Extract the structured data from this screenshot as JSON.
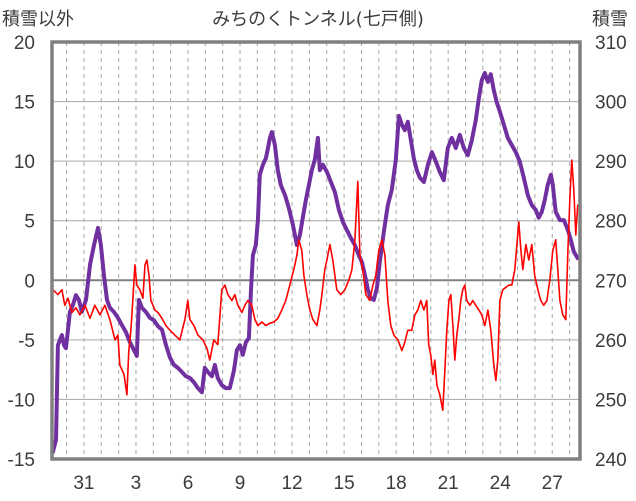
{
  "chart_data": {
    "type": "line",
    "title": "みちのくトンネル(七戸側)",
    "grid": true,
    "left_axis": {
      "label": "積雪以外",
      "ylim": [
        -15,
        20
      ],
      "ticks": [
        20,
        15,
        10,
        5,
        0,
        -5,
        -10,
        -15
      ]
    },
    "right_axis": {
      "label": "積雪",
      "ylim": [
        240,
        310
      ],
      "ticks": [
        310,
        300,
        290,
        280,
        270,
        260,
        250,
        240
      ]
    },
    "x_axis": {
      "xlim": [
        -1.84,
        28.6
      ],
      "tick_values": [
        0,
        3,
        6,
        9,
        12,
        15,
        18,
        21,
        24,
        27
      ],
      "tick_labels": [
        "31",
        "3",
        "6",
        "9",
        "12",
        "15",
        "18",
        "21",
        "24",
        "27"
      ]
    },
    "series": [
      {
        "axis": "left",
        "color": "#FF0000",
        "x": [
          -1.79,
          -1.5,
          -1.27,
          -1.1,
          -0.92,
          -0.69,
          -0.46,
          -0.23,
          0.06,
          0.35,
          0.63,
          0.92,
          1.21,
          1.5,
          1.79,
          1.96,
          2.07,
          2.31,
          2.48,
          2.59,
          2.71,
          2.82,
          2.94,
          3.05,
          3.23,
          3.4,
          3.52,
          3.63,
          3.75,
          3.86,
          3.98,
          4.09,
          4.27,
          4.5,
          4.73,
          4.96,
          5.24,
          5.53,
          5.82,
          5.99,
          6.11,
          6.34,
          6.57,
          6.86,
          7.09,
          7.26,
          7.49,
          7.72,
          7.95,
          8.13,
          8.3,
          8.53,
          8.7,
          8.88,
          9.11,
          9.28,
          9.45,
          9.68,
          9.86,
          10.03,
          10.26,
          10.49,
          10.72,
          10.95,
          11.18,
          11.41,
          11.64,
          11.87,
          12.1,
          12.28,
          12.39,
          12.56,
          12.68,
          12.85,
          13.03,
          13.2,
          13.43,
          13.6,
          13.72,
          13.89,
          14.01,
          14.18,
          14.35,
          14.58,
          14.81,
          15.04,
          15.27,
          15.45,
          15.62,
          15.79,
          15.91,
          16.08,
          16.25,
          16.48,
          16.66,
          16.83,
          17.0,
          17.18,
          17.35,
          17.52,
          17.69,
          17.87,
          18.1,
          18.33,
          18.5,
          18.67,
          18.9,
          19.08,
          19.25,
          19.42,
          19.6,
          19.77,
          19.88,
          20.0,
          20.12,
          20.23,
          20.35,
          20.52,
          20.69,
          20.81,
          20.92,
          21.04,
          21.15,
          21.27,
          21.38,
          21.5,
          21.61,
          21.73,
          21.84,
          21.96,
          22.07,
          22.25,
          22.42,
          22.59,
          22.77,
          22.94,
          23.11,
          23.29,
          23.46,
          23.63,
          23.75,
          23.86,
          23.98,
          24.15,
          24.32,
          24.5,
          24.67,
          24.84,
          24.96,
          25.07,
          25.19,
          25.3,
          25.48,
          25.65,
          25.82,
          25.99,
          26.17,
          26.34,
          26.51,
          26.69,
          26.86,
          27.03,
          27.2,
          27.32,
          27.44,
          27.61,
          27.78,
          27.9,
          28.01,
          28.13,
          28.24,
          28.36,
          28.47
        ],
        "y": [
          -0.8,
          -1.2,
          -0.8,
          -2.1,
          -1.5,
          -2.7,
          -2.3,
          -2.9,
          -2.1,
          -3.2,
          -2.1,
          -2.9,
          -2.1,
          -3.3,
          -5.0,
          -4.6,
          -7.1,
          -7.9,
          -9.6,
          -5.9,
          -4.2,
          -1.7,
          1.3,
          -0.4,
          -0.8,
          -1.5,
          1.3,
          1.7,
          0.4,
          -1.7,
          -2.1,
          -2.5,
          -2.7,
          -3.2,
          -3.8,
          -4.2,
          -4.6,
          -5.0,
          -3.3,
          -1.7,
          -3.3,
          -3.8,
          -4.6,
          -5.0,
          -5.7,
          -6.7,
          -5.0,
          -5.4,
          -0.8,
          -0.4,
          -1.2,
          -1.7,
          -1.2,
          -2.1,
          -2.7,
          -2.1,
          -1.7,
          -2.1,
          -3.3,
          -3.8,
          -3.5,
          -3.8,
          -3.6,
          -3.5,
          -3.2,
          -2.5,
          -1.7,
          -0.4,
          0.9,
          2.1,
          3.4,
          2.5,
          0.4,
          -1.2,
          -2.5,
          -3.3,
          -3.8,
          -2.5,
          -1.2,
          0.9,
          1.7,
          3.0,
          1.7,
          -0.8,
          -1.2,
          -0.8,
          0.0,
          0.9,
          3.4,
          8.3,
          2.1,
          0.9,
          -1.2,
          -1.7,
          -0.4,
          0.4,
          2.5,
          3.4,
          2.1,
          -1.7,
          -3.8,
          -4.6,
          -5.0,
          -5.9,
          -5.2,
          -4.2,
          -4.2,
          -2.9,
          -2.5,
          -1.7,
          -2.5,
          -1.7,
          -5.4,
          -6.3,
          -7.9,
          -6.7,
          -8.8,
          -9.6,
          -10.9,
          -7.5,
          -4.2,
          -1.7,
          -1.2,
          -3.8,
          -6.7,
          -4.6,
          -3.3,
          -1.7,
          -0.8,
          -0.4,
          -1.7,
          -2.1,
          -1.7,
          -2.1,
          -2.5,
          -2.9,
          -3.8,
          -2.5,
          -4.2,
          -7.1,
          -8.4,
          -6.7,
          -1.7,
          -0.8,
          -0.6,
          -0.4,
          -0.4,
          0.9,
          3.0,
          4.9,
          2.5,
          0.9,
          3.0,
          1.7,
          3.0,
          0.4,
          -0.8,
          -1.7,
          -2.1,
          -1.7,
          0.0,
          2.5,
          3.4,
          0.9,
          -1.7,
          -2.9,
          -3.3,
          2.5,
          6.7,
          10.1,
          7.6,
          3.8,
          6.3
        ]
      },
      {
        "axis": "right",
        "color": "#7030A0",
        "x": [
          -1.79,
          -1.61,
          -1.5,
          -1.38,
          -1.27,
          -1.15,
          -1.04,
          -0.92,
          -0.81,
          -0.63,
          -0.46,
          -0.29,
          -0.12,
          0.12,
          0.35,
          0.58,
          0.81,
          0.98,
          1.15,
          1.33,
          1.5,
          1.73,
          1.96,
          2.19,
          2.42,
          2.65,
          2.88,
          3.05,
          3.17,
          3.34,
          3.57,
          3.8,
          4.03,
          4.27,
          4.5,
          4.73,
          4.96,
          5.19,
          5.42,
          5.65,
          5.88,
          6.11,
          6.34,
          6.57,
          6.8,
          6.97,
          7.15,
          7.38,
          7.55,
          7.72,
          7.95,
          8.18,
          8.41,
          8.65,
          8.82,
          8.99,
          9.16,
          9.34,
          9.51,
          9.63,
          9.74,
          9.91,
          10.03,
          10.14,
          10.32,
          10.49,
          10.61,
          10.72,
          10.84,
          11.01,
          11.18,
          11.35,
          11.59,
          11.82,
          12.05,
          12.28,
          12.45,
          12.62,
          12.8,
          12.97,
          13.14,
          13.31,
          13.49,
          13.6,
          13.78,
          14.01,
          14.24,
          14.47,
          14.7,
          14.93,
          15.16,
          15.39,
          15.62,
          15.85,
          16.02,
          16.2,
          16.37,
          16.54,
          16.71,
          16.89,
          17.06,
          17.29,
          17.52,
          17.75,
          17.98,
          18.16,
          18.33,
          18.5,
          18.67,
          18.85,
          19.02,
          19.19,
          19.37,
          19.6,
          19.83,
          20.06,
          20.29,
          20.52,
          20.75,
          20.98,
          21.21,
          21.44,
          21.67,
          21.9,
          22.13,
          22.36,
          22.59,
          22.77,
          22.94,
          23.11,
          23.29,
          23.46,
          23.63,
          23.8,
          23.98,
          24.21,
          24.44,
          24.67,
          24.9,
          25.13,
          25.36,
          25.59,
          25.82,
          26.05,
          26.22,
          26.4,
          26.57,
          26.74,
          26.92,
          27.03,
          27.2,
          27.44,
          27.67,
          27.9,
          28.07,
          28.24,
          28.47
        ],
        "y": [
          241.2,
          243.2,
          259.1,
          260.0,
          260.8,
          259.1,
          258.6,
          261.7,
          264.7,
          265.9,
          267.5,
          266.7,
          264.7,
          266.7,
          272.6,
          275.9,
          278.8,
          275.9,
          270.9,
          266.7,
          265.4,
          264.7,
          263.7,
          262.5,
          261.3,
          259.6,
          258.3,
          257.3,
          266.7,
          265.4,
          264.7,
          263.7,
          263.3,
          262.3,
          261.7,
          259.1,
          257.0,
          255.8,
          255.3,
          254.6,
          253.9,
          253.6,
          252.9,
          251.9,
          251.2,
          255.3,
          254.6,
          253.9,
          255.8,
          253.6,
          252.4,
          251.9,
          251.9,
          254.9,
          258.3,
          259.1,
          257.5,
          259.6,
          260.3,
          268.4,
          274.2,
          275.9,
          280.1,
          287.7,
          289.4,
          290.5,
          292.2,
          293.9,
          294.9,
          292.7,
          288.5,
          286.0,
          284.3,
          282.1,
          279.3,
          275.9,
          277.6,
          280.5,
          283.5,
          286.0,
          288.5,
          290.2,
          293.9,
          288.5,
          289.4,
          288.2,
          286.5,
          284.8,
          281.8,
          279.8,
          278.4,
          277.1,
          275.9,
          274.2,
          273.1,
          270.9,
          268.4,
          267.0,
          266.7,
          268.7,
          273.1,
          278.1,
          282.6,
          285.2,
          290.2,
          297.6,
          296.1,
          295.2,
          296.6,
          293.5,
          290.5,
          288.5,
          287.2,
          286.5,
          289.4,
          291.5,
          289.9,
          288.2,
          286.8,
          292.2,
          293.9,
          292.2,
          294.4,
          292.2,
          291.0,
          293.5,
          296.9,
          300.6,
          303.6,
          304.8,
          303.3,
          304.6,
          301.9,
          299.9,
          298.3,
          296.1,
          293.9,
          292.7,
          291.5,
          289.9,
          287.2,
          284.3,
          282.6,
          281.8,
          280.5,
          281.5,
          283.5,
          286.0,
          287.7,
          286.0,
          281.5,
          280.1,
          280.1,
          278.4,
          276.8,
          274.8,
          273.7
        ]
      }
    ]
  }
}
